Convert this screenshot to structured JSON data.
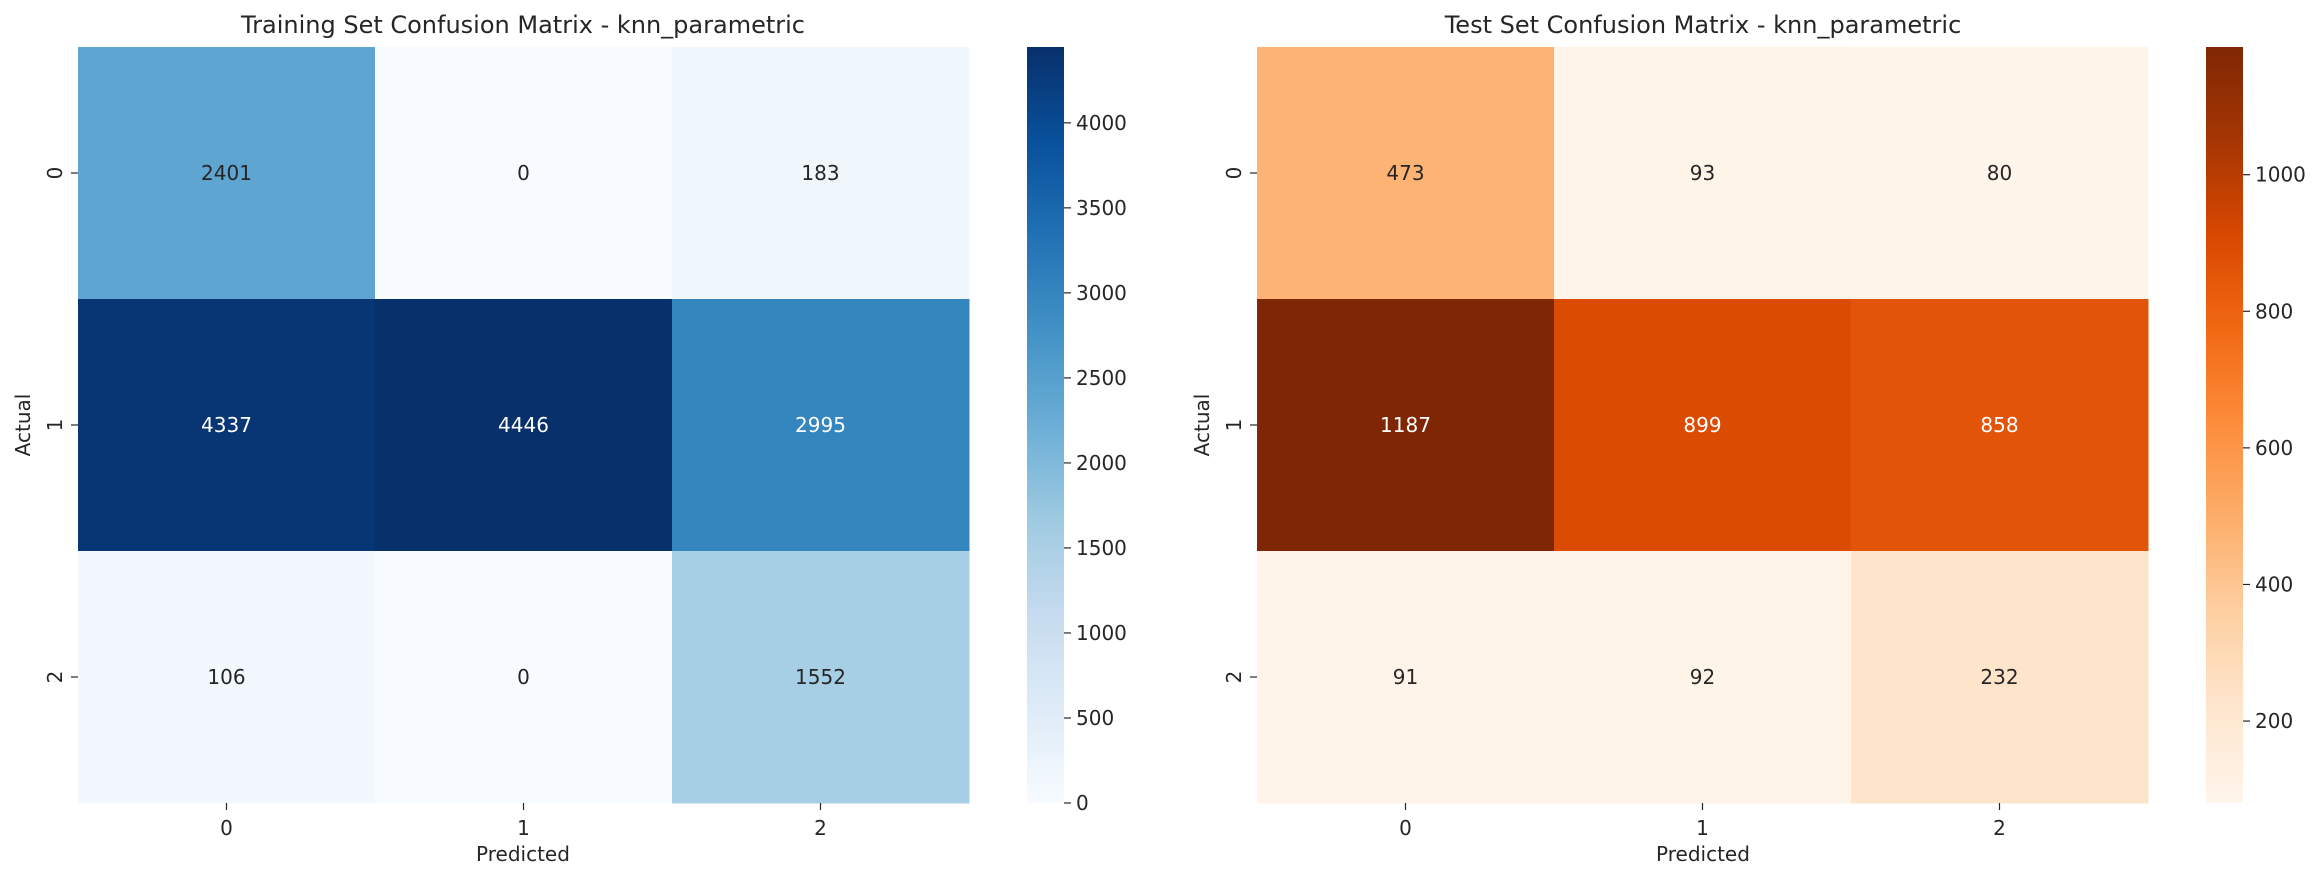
{
  "chart_data": [
    {
      "type": "heatmap",
      "title": "Training Set Confusion Matrix - knn_parametric",
      "xlabel": "Predicted",
      "ylabel": "Actual",
      "x_categories": [
        "0",
        "1",
        "2"
      ],
      "y_categories": [
        "0",
        "1",
        "2"
      ],
      "values": [
        [
          2401,
          0,
          183
        ],
        [
          4337,
          4446,
          2995
        ],
        [
          106,
          0,
          1552
        ]
      ],
      "colormap": "Blues",
      "colorbar_range": [
        0,
        4446
      ],
      "colorbar_ticks": [
        "0",
        "500",
        "1000",
        "1500",
        "2000",
        "2500",
        "3000",
        "3500",
        "4000"
      ]
    },
    {
      "type": "heatmap",
      "title": "Test Set Confusion Matrix - knn_parametric",
      "xlabel": "Predicted",
      "ylabel": "Actual",
      "x_categories": [
        "0",
        "1",
        "2"
      ],
      "y_categories": [
        "0",
        "1",
        "2"
      ],
      "values": [
        [
          473,
          93,
          80
        ],
        [
          1187,
          899,
          858
        ],
        [
          91,
          92,
          232
        ]
      ],
      "colormap": "Oranges",
      "colorbar_range": [
        80,
        1187
      ],
      "colorbar_ticks": [
        "200",
        "400",
        "600",
        "800",
        "1000"
      ]
    }
  ]
}
